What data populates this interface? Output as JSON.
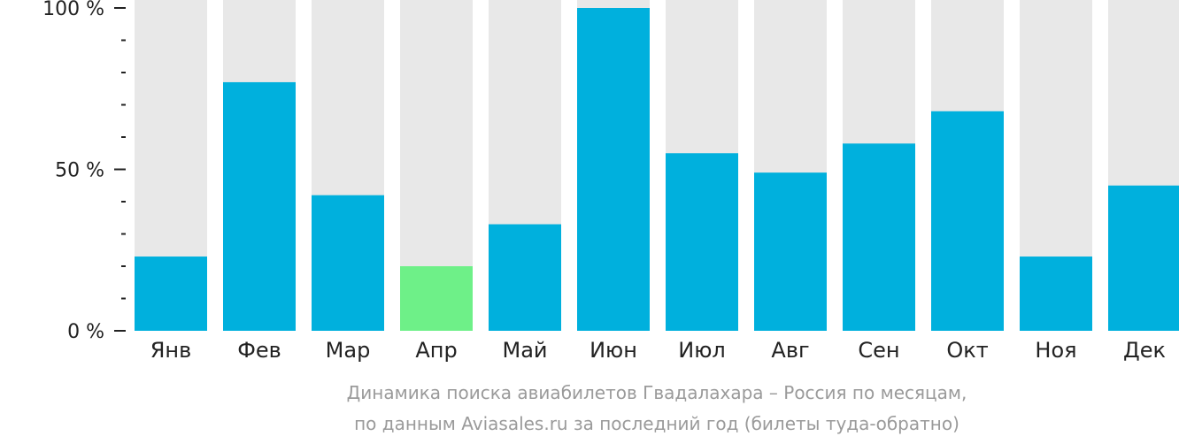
{
  "chart_data": {
    "type": "bar",
    "categories": [
      "Янв",
      "Фев",
      "Мар",
      "Апр",
      "Май",
      "Июн",
      "Июл",
      "Авг",
      "Сен",
      "Окт",
      "Ноя",
      "Дек"
    ],
    "values": [
      23,
      77,
      42,
      20,
      33,
      100,
      55,
      49,
      58,
      68,
      23,
      45
    ],
    "highlight_index": 3,
    "ylim": [
      0,
      100
    ],
    "yticks": [
      {
        "value": 0,
        "label": "0 %"
      },
      {
        "value": 50,
        "label": "50 %"
      },
      {
        "value": 100,
        "label": "100 %"
      }
    ],
    "minor_tick_step": 10,
    "colors": {
      "bar": "#00b0dd",
      "highlight": "#6ef088",
      "background_bar": "#e8e8e8",
      "axis_text": "#222222",
      "caption": "#9a9a9a"
    }
  },
  "caption": {
    "line1": "Динамика поиска авиабилетов Гвадалахара – Россия по месяцам,",
    "line2": "по данным Aviasales.ru за последний год (билеты туда-обратно)"
  }
}
